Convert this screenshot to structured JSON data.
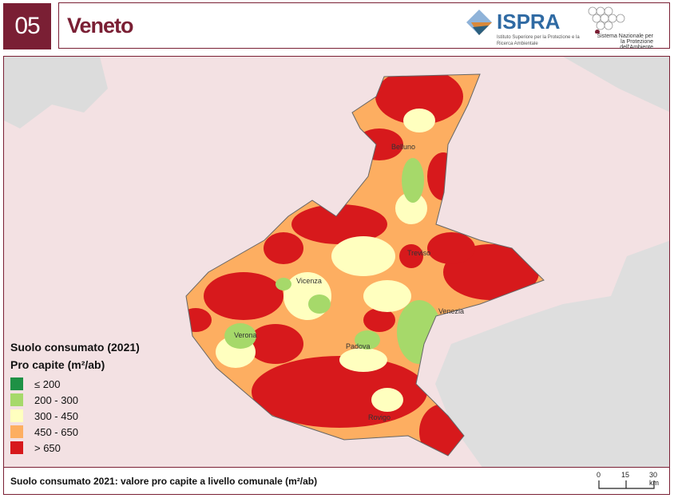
{
  "header": {
    "number": "05",
    "title": "Veneto",
    "ispra_logo": "ISPRA",
    "ispra_subtitle": "Istituto Superiore per la Protezione e la Ricerca Ambientale",
    "snpa_logo": "Sistema Nazionale per la Protezione dell'Ambiente"
  },
  "legend": {
    "title": "Suolo consumato (2021)",
    "subtitle": "Pro capite (m²/ab)",
    "items": [
      {
        "label": "≤ 200",
        "color": "#1e9145"
      },
      {
        "label": "200 - 300",
        "color": "#a6d96a"
      },
      {
        "label": "300 - 450",
        "color": "#ffffbf"
      },
      {
        "label": "450 - 650",
        "color": "#fdae61"
      },
      {
        "label": "> 650",
        "color": "#d7191c"
      }
    ]
  },
  "cities": [
    "Belluno",
    "Treviso",
    "Vicenza",
    "Verona",
    "Padova",
    "Venezia",
    "Rovigo"
  ],
  "footer": {
    "caption": "Suolo consumato 2021: valore pro capite a livello comunale (m²/ab)",
    "scale": [
      "0",
      "15",
      "30 km"
    ]
  }
}
